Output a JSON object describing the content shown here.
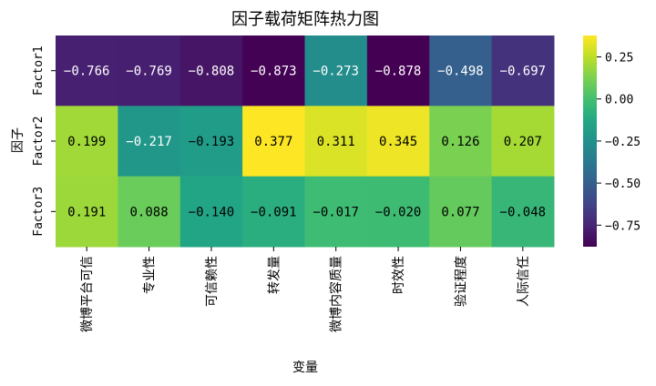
{
  "chart_data": {
    "type": "heatmap",
    "title": "因子载荷矩阵热力图",
    "xlabel": "变量",
    "ylabel": "因子",
    "x_categories": [
      "微博平台可信",
      "专业性",
      "可信赖性",
      "转发量",
      "微博内容质量",
      "时效性",
      "验证程度",
      "人际信任"
    ],
    "y_categories": [
      "Factor1",
      "Factor2",
      "Factor3"
    ],
    "values": [
      [
        -0.766,
        -0.769,
        -0.808,
        -0.873,
        -0.273,
        -0.878,
        -0.498,
        -0.697
      ],
      [
        0.199,
        -0.217,
        -0.193,
        0.377,
        0.311,
        0.345,
        0.126,
        0.207
      ],
      [
        0.191,
        0.088,
        -0.14,
        -0.091,
        -0.017,
        -0.02,
        0.077,
        -0.048
      ]
    ],
    "value_format": "0.000",
    "colormap": "viridis",
    "vmin": -0.878,
    "vmax": 0.377,
    "colorbar_ticks": [
      0.25,
      0.0,
      -0.25,
      -0.5,
      -0.75
    ],
    "colorbar_tick_labels": [
      "0.25",
      "0.00",
      "−0.25",
      "−0.50",
      "−0.75"
    ]
  }
}
